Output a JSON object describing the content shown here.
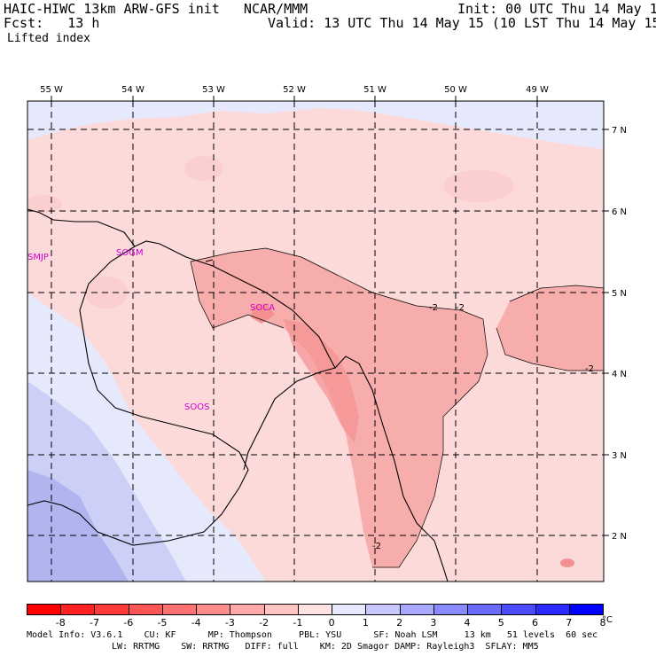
{
  "header": {
    "model_line": "HAIC-HIWC 13km ARW-GFS init   NCAR/MMM",
    "fcst_line": "Fcst:   13 h",
    "field": "Lifted index",
    "init_line": "Init: 00 UTC Thu 14 May 15",
    "valid_line": "Valid: 13 UTC Thu 14 May 15 (10 LST Thu 14 May 15)"
  },
  "map": {
    "lon_labels": [
      "55 W",
      "54 W",
      "53 W",
      "52 W",
      "51 W",
      "50 W",
      "49 W"
    ],
    "lat_labels": [
      "7 N",
      "6 N",
      "5 N",
      "4 N",
      "3 N",
      "2 N"
    ],
    "stations": [
      "SMJP",
      "SOGM",
      "SOCA",
      "SOOS"
    ],
    "contour_labels": [
      "-2",
      "-2",
      "-2",
      "-2"
    ],
    "colors": {
      "cell_pale": "#fde7e7",
      "cell_light": "#fbcfcf",
      "cell_mid": "#f8adad",
      "cell_strong": "#f49090",
      "blue_pale": "#e6e8fb",
      "blue_light": "#ccd0f7",
      "blue_mid": "#b0b5f0",
      "coast": "#000000"
    }
  },
  "colorbar": {
    "labels": [
      "-8",
      "-7",
      "-6",
      "-5",
      "-4",
      "-3",
      "-2",
      "-1",
      "0",
      "1",
      "2",
      "3",
      "4",
      "5",
      "6",
      "7",
      "8"
    ],
    "unit": "°C",
    "colors": [
      "#ff0000",
      "#ff2020",
      "#ff3a3a",
      "#ff5555",
      "#ff7070",
      "#ff8c8c",
      "#ffa8a8",
      "#ffc5c5",
      "#ffe2e2",
      "#e8e8ff",
      "#c8c8ff",
      "#a8a8ff",
      "#8a8aff",
      "#6a6aff",
      "#4a4aff",
      "#2a2aff",
      "#0000ff"
    ]
  },
  "footer": {
    "line1": "Model Info: V3.6.1    CU: KF      MP: Thompson     PBL: YSU      SF: Noah LSM     13 km   51 levels  60 sec",
    "line2": "LW: RRTMG    SW: RRTMG   DIFF: full    KM: 2D Smagor DAMP: Rayleigh3  SFLAY: MM5"
  }
}
